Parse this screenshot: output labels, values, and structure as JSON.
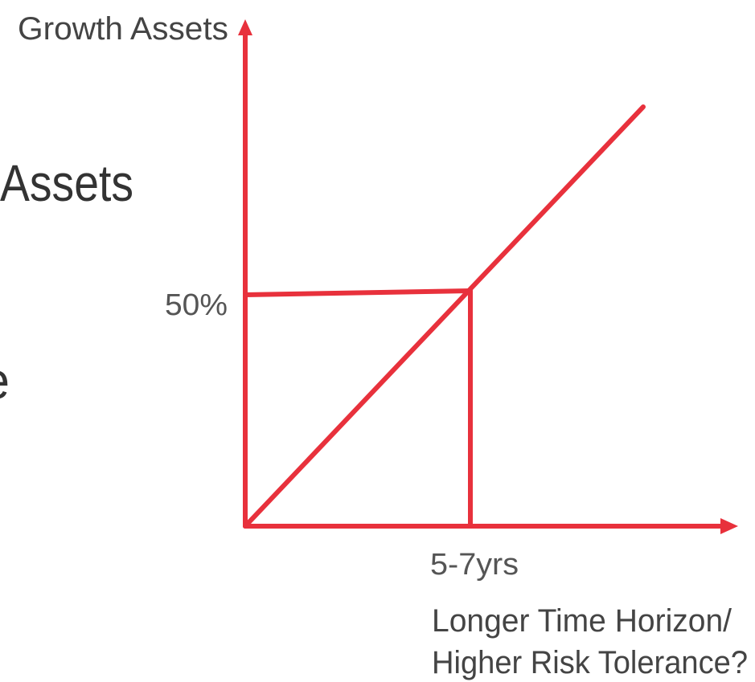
{
  "y_axis_label": "Growth Assets",
  "y_marker_label": "50%",
  "x_marker_label": "5-7yrs",
  "x_axis_label": [
    "Longer Time Horizon/",
    "Higher Risk Tolerance?"
  ],
  "background_text": [
    "Assets",
    "e"
  ]
}
